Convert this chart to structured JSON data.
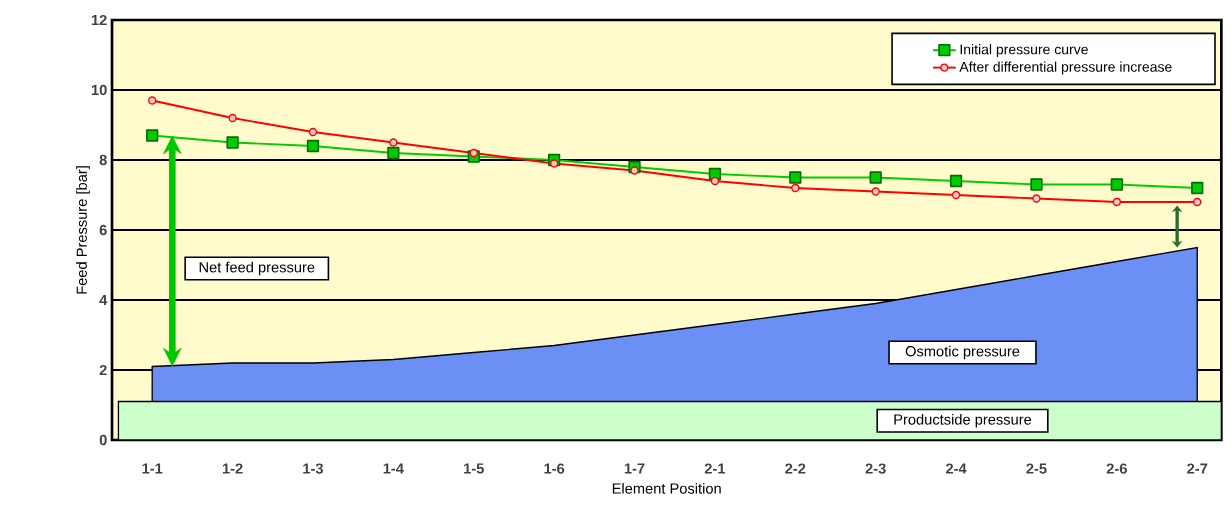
{
  "chart_data": {
    "type": "line",
    "xlabel": "Element Position",
    "ylabel": "Feed Pressure [bar]",
    "categories": [
      "1-1",
      "1-2",
      "1-3",
      "1-4",
      "1-5",
      "1-6",
      "1-7",
      "2-1",
      "2-2",
      "2-3",
      "2-4",
      "2-5",
      "2-6",
      "2-7"
    ],
    "series": [
      {
        "name": "Initial pressure curve",
        "color": "#00cc00",
        "marker": "square",
        "values": [
          8.7,
          8.5,
          8.4,
          8.2,
          8.1,
          8.0,
          7.8,
          7.6,
          7.5,
          7.5,
          7.4,
          7.3,
          7.3,
          7.2
        ]
      },
      {
        "name": "After differential pressure increase",
        "color": "#ff0000",
        "marker": "circle",
        "values": [
          9.7,
          9.2,
          8.8,
          8.5,
          8.2,
          7.9,
          7.7,
          7.4,
          7.2,
          7.1,
          7.0,
          6.9,
          6.8,
          6.8
        ]
      },
      {
        "name": "Osmotic pressure",
        "type": "area",
        "color": "#6b8ff5",
        "values": [
          2.1,
          2.2,
          2.2,
          2.3,
          2.5,
          2.7,
          3.0,
          3.3,
          3.6,
          3.9,
          4.3,
          4.7,
          5.1,
          5.5
        ]
      }
    ],
    "ylim": [
      0,
      12
    ],
    "yticks": [
      0,
      2,
      4,
      6,
      8,
      10,
      12
    ],
    "grid": "y",
    "legend": "top right",
    "bands": [
      {
        "axis": "y",
        "from": 0,
        "to": 1.1,
        "label": "Productside pressure",
        "color": "#ccffcc"
      }
    ],
    "annotations": [
      "Net feed pressure"
    ]
  }
}
